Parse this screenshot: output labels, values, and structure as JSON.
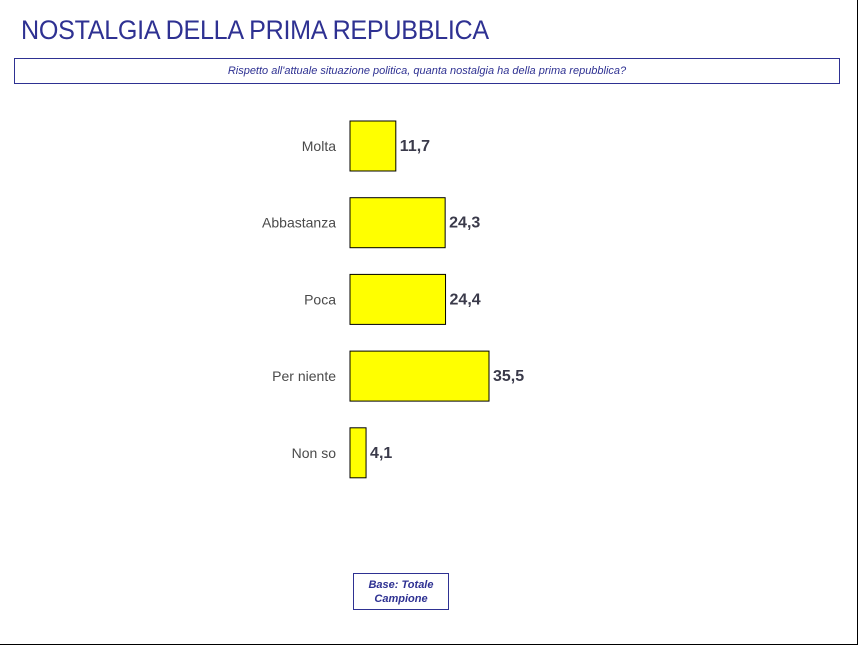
{
  "title": "NOSTALGIA DELLA PRIMA REPUBBLICA",
  "question": "Rispetto all'attuale situazione politica, quanta nostalgia ha della prima repubblica?",
  "base_note": "Base: Totale Campione",
  "colors": {
    "title": "#2e3192",
    "bar_fill": "#ffff00",
    "bar_stroke": "#000000",
    "category_label": "#4a4a4a",
    "value_label": "#3a3a4a"
  },
  "chart_data": {
    "type": "bar",
    "orientation": "horizontal",
    "categories": [
      "Molta",
      "Abbastanza",
      "Poca",
      "Per niente",
      "Non so"
    ],
    "values": [
      11.7,
      24.3,
      24.4,
      35.5,
      4.1
    ],
    "value_labels": [
      "11,7",
      "24,3",
      "24,4",
      "35,5",
      "4,1"
    ],
    "title": "",
    "xlabel": "",
    "ylabel": "",
    "xlim": [
      0,
      35.5
    ],
    "grid": false,
    "legend": "none"
  }
}
